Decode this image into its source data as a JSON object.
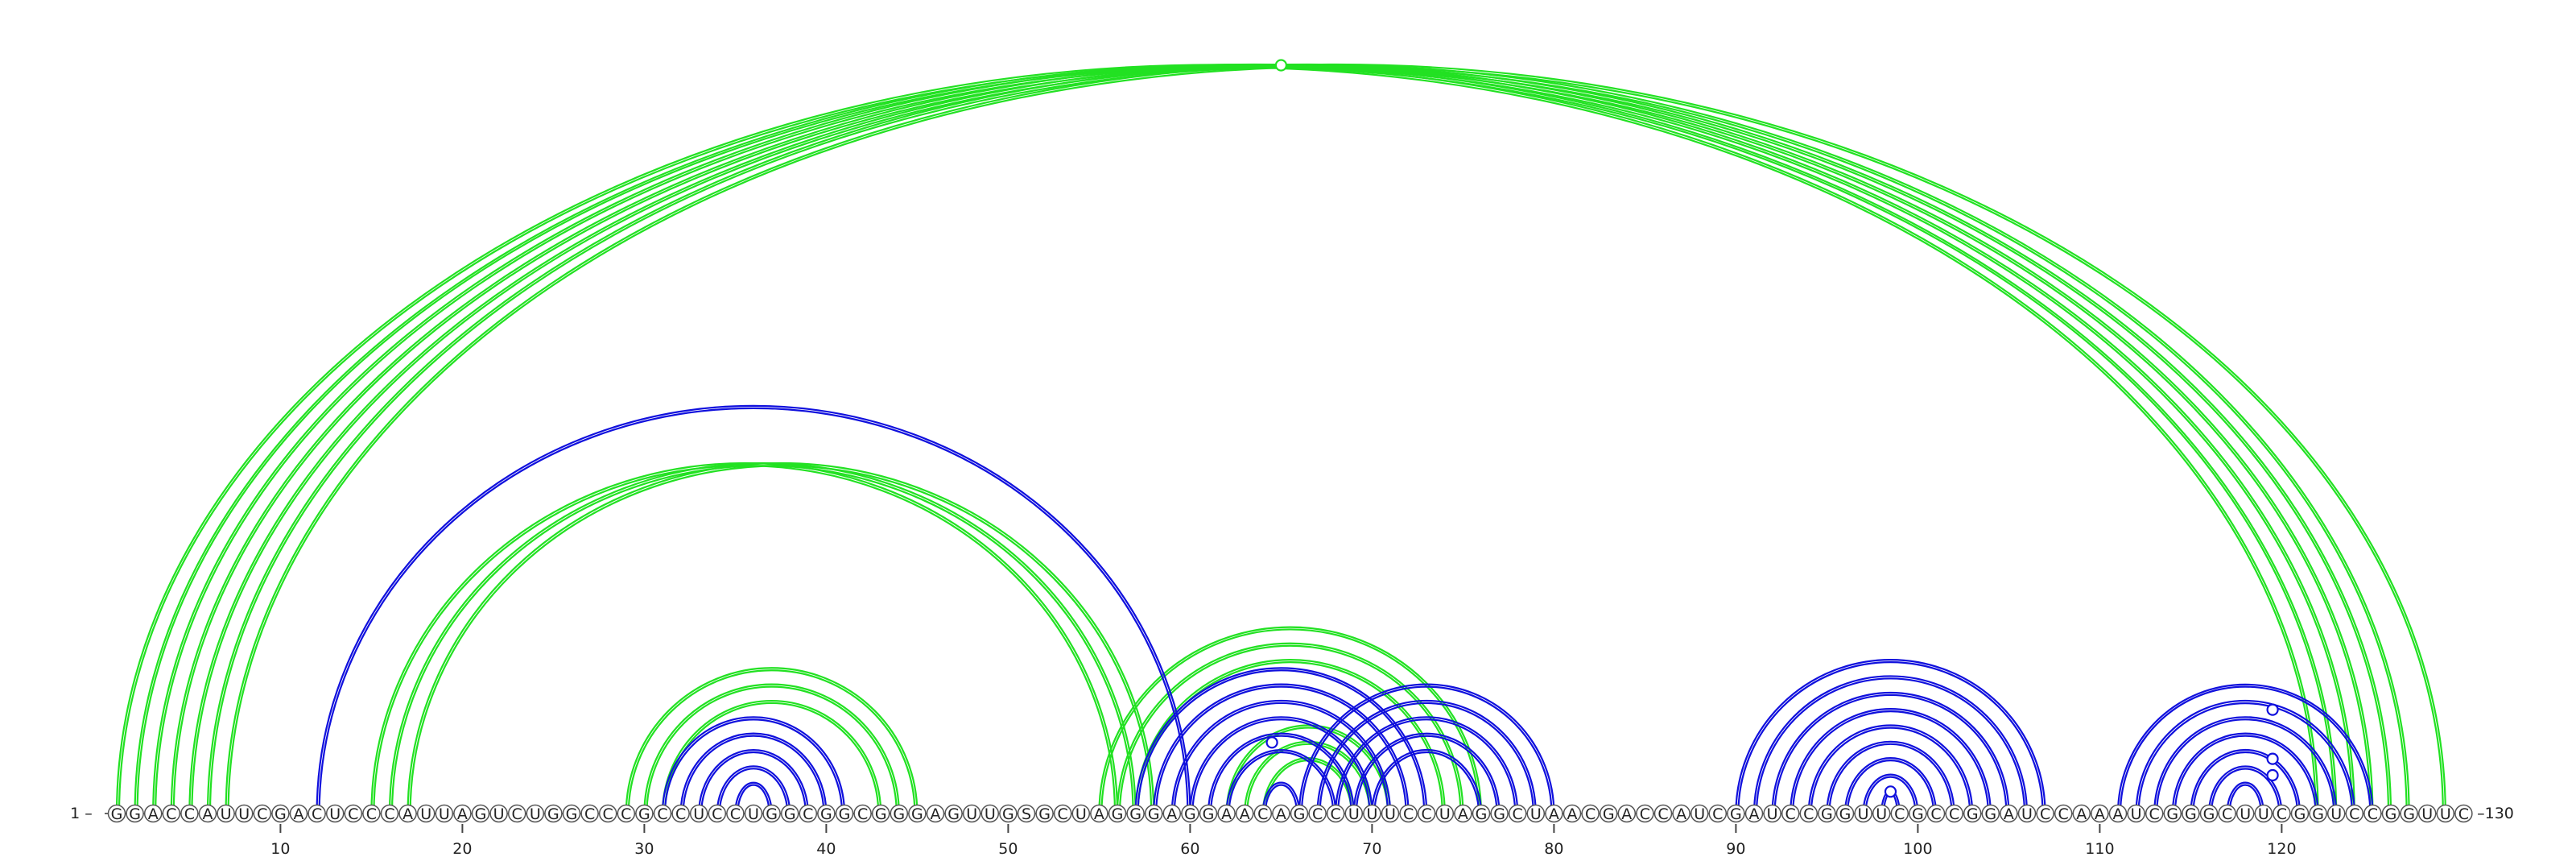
{
  "sequence": "GGACCAUUCGACUCCCAUUAGUCUGGCCCGCCUCCUGGCGGCGGGAGUUGSGCUAGGGAGGAACAGCCUUUCCUAGGCUAACGACCAUCGAUCCGGUUCGCCGGAUCCAAAUCGGGCUUCGGUCCGGUUC",
  "start_label": "1 –",
  "end_label": "–130",
  "ticks": [
    "10",
    "20",
    "30",
    "40",
    "50",
    "60",
    "70",
    "80",
    "90",
    "100",
    "110",
    "120"
  ],
  "colors": {
    "green": "#22e122",
    "blue": "#1010dd",
    "circle_stroke": "#555555",
    "text": "#222222"
  },
  "arcs": {
    "green": [
      [
        1,
        122
      ],
      [
        2,
        123
      ],
      [
        3,
        124
      ],
      [
        4,
        125
      ],
      [
        5,
        126
      ],
      [
        6,
        127
      ],
      [
        7,
        129
      ],
      [
        15,
        56
      ],
      [
        16,
        57
      ],
      [
        17,
        58
      ],
      [
        29,
        45
      ],
      [
        30,
        44
      ],
      [
        31,
        43
      ],
      [
        55,
        76
      ],
      [
        56,
        75
      ],
      [
        57,
        74
      ],
      [
        62,
        71
      ],
      [
        63,
        70
      ],
      [
        64,
        69
      ]
    ],
    "blue": [
      [
        12,
        60
      ],
      [
        31,
        41
      ],
      [
        32,
        40
      ],
      [
        33,
        39
      ],
      [
        34,
        38
      ],
      [
        35,
        37
      ],
      [
        57,
        73
      ],
      [
        58,
        72
      ],
      [
        59,
        71
      ],
      [
        60,
        70
      ],
      [
        61,
        69
      ],
      [
        62,
        68
      ],
      [
        64,
        66
      ],
      [
        66,
        80
      ],
      [
        67,
        79
      ],
      [
        68,
        78
      ],
      [
        69,
        77
      ],
      [
        70,
        76
      ],
      [
        90,
        107
      ],
      [
        91,
        106
      ],
      [
        92,
        105
      ],
      [
        93,
        104
      ],
      [
        94,
        103
      ],
      [
        95,
        102
      ],
      [
        96,
        101
      ],
      [
        97,
        100
      ],
      [
        98,
        99
      ],
      [
        111,
        125
      ],
      [
        112,
        124
      ],
      [
        113,
        123
      ],
      [
        114,
        122
      ],
      [
        115,
        121
      ],
      [
        116,
        120
      ],
      [
        117,
        119
      ]
    ]
  },
  "pseudoknot_markers": [
    {
      "color": "green",
      "arc": [
        1,
        129
      ]
    },
    {
      "color": "blue",
      "arc": [
        61,
        68
      ]
    },
    {
      "color": "blue",
      "arc": [
        98,
        99
      ]
    },
    {
      "color": "blue",
      "arc": [
        114,
        125
      ]
    },
    {
      "color": "blue",
      "arc": [
        117,
        122
      ]
    },
    {
      "color": "blue",
      "arc": [
        118,
        121
      ]
    }
  ]
}
